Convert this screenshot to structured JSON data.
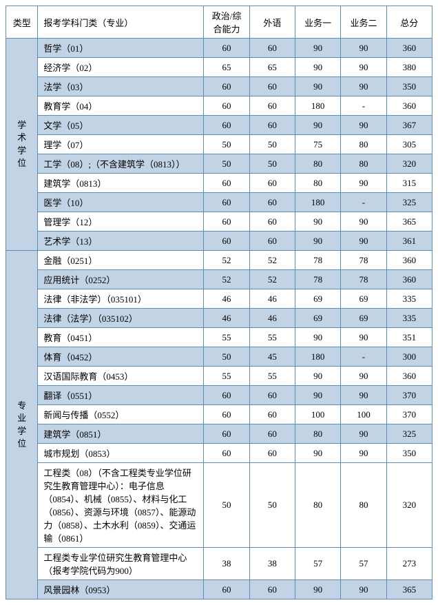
{
  "headers": {
    "type": "类型",
    "subject": "报考学科门类（专业）",
    "politics": "政治/综合能力",
    "foreign": "外语",
    "course1": "业务一",
    "course2": "业务二",
    "total": "总分"
  },
  "colors": {
    "border": "#5b8cb3",
    "alt_row": "#c1d3e5",
    "background": "#ffffff",
    "text": "#000000"
  },
  "groups": [
    {
      "type_label": "学术学位",
      "rows": [
        {
          "alt": true,
          "subject": "哲学（01）",
          "c1": "60",
          "c2": "60",
          "c3": "90",
          "c4": "90",
          "total": "360"
        },
        {
          "alt": false,
          "subject": "经济学（02）",
          "c1": "65",
          "c2": "65",
          "c3": "90",
          "c4": "90",
          "total": "380"
        },
        {
          "alt": true,
          "subject": "法学（03）",
          "c1": "60",
          "c2": "60",
          "c3": "90",
          "c4": "90",
          "total": "350"
        },
        {
          "alt": false,
          "subject": "教育学（04）",
          "c1": "60",
          "c2": "60",
          "c3": "180",
          "c4": "-",
          "total": "360"
        },
        {
          "alt": true,
          "subject": "文学（05）",
          "c1": "60",
          "c2": "60",
          "c3": "90",
          "c4": "90",
          "total": "367"
        },
        {
          "alt": false,
          "subject": "理学（07）",
          "c1": "50",
          "c2": "50",
          "c3": "75",
          "c4": "80",
          "total": "305"
        },
        {
          "alt": true,
          "subject": "工学（08）;（不含建筑学（0813））",
          "c1": "50",
          "c2": "50",
          "c3": "80",
          "c4": "80",
          "total": "320"
        },
        {
          "alt": false,
          "subject": "建筑学（0813）",
          "c1": "60",
          "c2": "60",
          "c3": "80",
          "c4": "90",
          "total": "315"
        },
        {
          "alt": true,
          "subject": "医学（10）",
          "c1": "60",
          "c2": "60",
          "c3": "180",
          "c4": "-",
          "total": "325"
        },
        {
          "alt": false,
          "subject": "管理学（12）",
          "c1": "60",
          "c2": "60",
          "c3": "90",
          "c4": "90",
          "total": "365"
        },
        {
          "alt": true,
          "subject": "艺术学（13）",
          "c1": "60",
          "c2": "60",
          "c3": "90",
          "c4": "90",
          "total": "361"
        }
      ]
    },
    {
      "type_label": "专业学位",
      "rows": [
        {
          "alt": false,
          "subject": "金融（0251）",
          "c1": "52",
          "c2": "52",
          "c3": "78",
          "c4": "78",
          "total": "360"
        },
        {
          "alt": true,
          "subject": "应用统计（0252）",
          "c1": "52",
          "c2": "52",
          "c3": "78",
          "c4": "78",
          "total": "360"
        },
        {
          "alt": false,
          "subject": "法律（非法学）（035101）",
          "c1": "46",
          "c2": "46",
          "c3": "69",
          "c4": "69",
          "total": "335"
        },
        {
          "alt": true,
          "subject": "法律（法学）（035102）",
          "c1": "46",
          "c2": "46",
          "c3": "69",
          "c4": "69",
          "total": "335"
        },
        {
          "alt": false,
          "subject": "教育（0451）",
          "c1": "55",
          "c2": "55",
          "c3": "90",
          "c4": "90",
          "total": "351"
        },
        {
          "alt": true,
          "subject": "体育（0452）",
          "c1": "50",
          "c2": "45",
          "c3": "180",
          "c4": "-",
          "total": "300"
        },
        {
          "alt": false,
          "subject": "汉语国际教育（0453）",
          "c1": "55",
          "c2": "55",
          "c3": "90",
          "c4": "90",
          "total": "360"
        },
        {
          "alt": true,
          "subject": "翻译（0551）",
          "c1": "60",
          "c2": "60",
          "c3": "90",
          "c4": "90",
          "total": "370"
        },
        {
          "alt": false,
          "subject": "新闻与传播（0552）",
          "c1": "60",
          "c2": "60",
          "c3": "100",
          "c4": "100",
          "total": "370"
        },
        {
          "alt": true,
          "subject": "建筑学（0851）",
          "c1": "60",
          "c2": "60",
          "c3": "80",
          "c4": "90",
          "total": "325"
        },
        {
          "alt": false,
          "subject": "城市规划（0853）",
          "c1": "60",
          "c2": "60",
          "c3": "90",
          "c4": "90",
          "total": "350"
        },
        {
          "alt": false,
          "subject": "工程类（08）（不含工程类专业学位研究生教育管理中心）：电子信息（0854）、机械（0855）、材料与化工（0856）、资源与环境（0857）、能源动力（0858）、土木水利（0859）、交通运输（0861）",
          "c1": "50",
          "c2": "50",
          "c3": "80",
          "c4": "80",
          "total": "320"
        },
        {
          "alt": false,
          "subject": "工程类专业学位研究生教育管理中心（报考学院代码为900）",
          "c1": "38",
          "c2": "38",
          "c3": "57",
          "c4": "57",
          "total": "273"
        },
        {
          "alt": true,
          "subject": "风景园林（0953）",
          "c1": "60",
          "c2": "60",
          "c3": "90",
          "c4": "90",
          "total": "365"
        }
      ]
    }
  ]
}
